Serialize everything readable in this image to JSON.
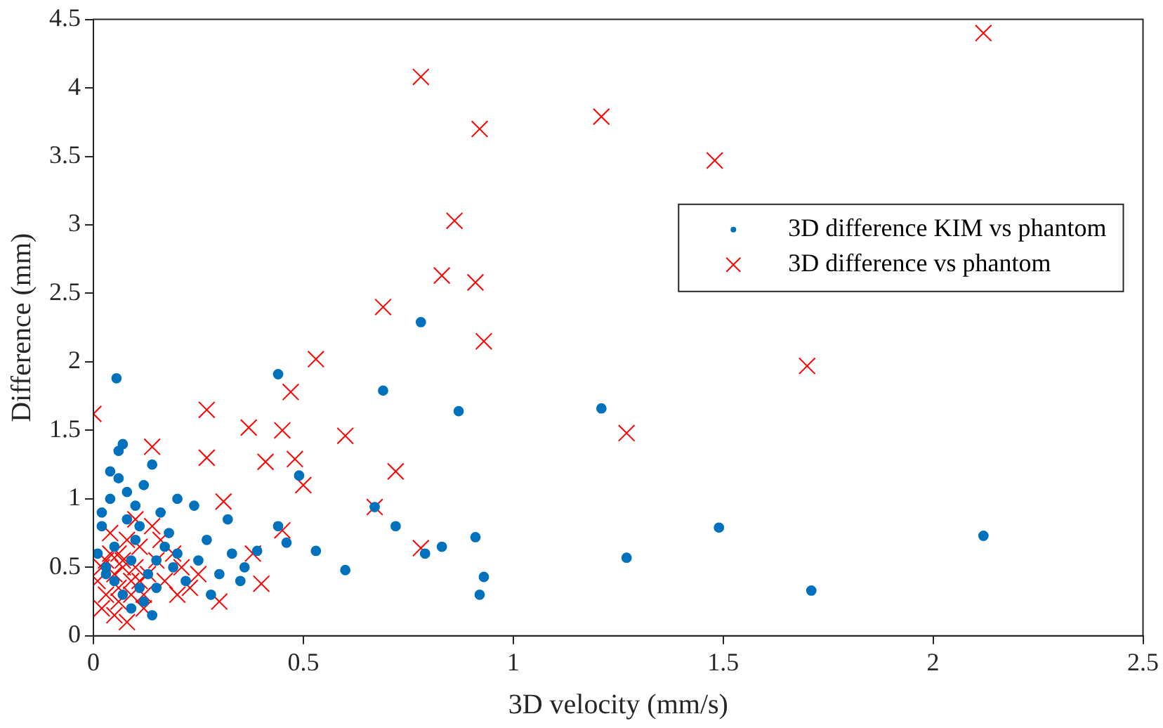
{
  "chart_data": {
    "type": "scatter",
    "xlabel": "3D velocity (mm/s)",
    "ylabel": "Difference (mm)",
    "xlim": [
      0,
      2.5
    ],
    "xticks": [
      0,
      0.5,
      1,
      1.5,
      2,
      2.5
    ],
    "ylim": [
      0,
      4.5
    ],
    "yticks": [
      0,
      0.5,
      1,
      1.5,
      2,
      2.5,
      3,
      3.5,
      4,
      4.5
    ],
    "grid": false,
    "legend": "right",
    "series": [
      {
        "name": "3D difference KIM vs phantom",
        "color": "#0072bd",
        "marker": "circle",
        "x": [
          0.055,
          0.44,
          0.78,
          0.69,
          0.87,
          1.21,
          0.67,
          0.72,
          0.79,
          0.83,
          0.91,
          0.93,
          0.92,
          1.27,
          1.49,
          1.71,
          2.12,
          0.6,
          0.53,
          0.49,
          0.44,
          0.46,
          0.39,
          0.02,
          0.04,
          0.06,
          0.08,
          0.1,
          0.12,
          0.14,
          0.16,
          0.18,
          0.2,
          0.03,
          0.05,
          0.07,
          0.09,
          0.11,
          0.13,
          0.15,
          0.17,
          0.19,
          0.22,
          0.25,
          0.28,
          0.3,
          0.33,
          0.36,
          0.01,
          0.02,
          0.04,
          0.06,
          0.08,
          0.1,
          0.12,
          0.14,
          0.05,
          0.09,
          0.03,
          0.07,
          0.11,
          0.24,
          0.27,
          0.32,
          0.35,
          0.2,
          0.15
        ],
        "values": [
          1.88,
          1.91,
          2.29,
          1.79,
          1.64,
          1.66,
          0.94,
          0.8,
          0.6,
          0.65,
          0.72,
          0.43,
          0.3,
          0.57,
          0.79,
          0.33,
          0.73,
          0.48,
          0.62,
          1.17,
          0.8,
          0.68,
          0.62,
          0.8,
          1.0,
          1.15,
          1.05,
          0.95,
          1.1,
          1.25,
          0.9,
          0.75,
          0.6,
          0.5,
          0.4,
          0.3,
          0.2,
          0.35,
          0.45,
          0.55,
          0.65,
          0.5,
          0.4,
          0.55,
          0.3,
          0.45,
          0.6,
          0.5,
          0.6,
          0.9,
          1.2,
          1.35,
          0.85,
          0.7,
          0.25,
          0.15,
          0.65,
          0.55,
          0.45,
          1.4,
          0.8,
          0.95,
          0.7,
          0.85,
          0.4,
          1.0,
          0.35
        ]
      },
      {
        "name": "3D difference vs phantom",
        "color": "#ff0000",
        "marker": "cross",
        "x": [
          0,
          0.78,
          0.92,
          1.21,
          1.48,
          2.12,
          0.86,
          0.83,
          0.91,
          0.93,
          0.69,
          0.53,
          0.6,
          0.72,
          1.27,
          1.7,
          0.78,
          0.67,
          0.47,
          0.45,
          0.37,
          0.41,
          0.48,
          0.27,
          0.14,
          0.5,
          0.31,
          0.27,
          0.45,
          0.38,
          0.3,
          0.4,
          0.01,
          0.02,
          0.03,
          0.04,
          0.05,
          0.06,
          0.07,
          0.08,
          0.09,
          0.1,
          0.11,
          0.12,
          0.13,
          0.15,
          0.17,
          0.19,
          0.21,
          0.23,
          0.25,
          0.02,
          0.04,
          0.06,
          0.08,
          0.1,
          0.12,
          0.14,
          0.05,
          0.07,
          0.09,
          0.03,
          0.16,
          0.2,
          0.11,
          0.06
        ],
        "values": [
          1.62,
          4.08,
          3.7,
          3.79,
          3.47,
          4.4,
          3.03,
          2.63,
          2.58,
          2.15,
          2.4,
          2.02,
          1.46,
          1.2,
          1.48,
          1.97,
          0.64,
          0.94,
          1.78,
          1.5,
          1.52,
          1.27,
          1.29,
          1.65,
          1.38,
          1.1,
          0.98,
          1.3,
          0.77,
          0.6,
          0.25,
          0.38,
          0.4,
          0.5,
          0.3,
          0.6,
          0.45,
          0.35,
          0.55,
          0.7,
          0.4,
          0.5,
          0.65,
          0.3,
          0.45,
          0.55,
          0.4,
          0.6,
          0.5,
          0.35,
          0.45,
          0.2,
          0.75,
          0.25,
          0.1,
          0.85,
          0.2,
          0.8,
          0.15,
          0.5,
          0.3,
          0.55,
          0.7,
          0.3,
          0.4,
          0.6
        ]
      }
    ]
  }
}
